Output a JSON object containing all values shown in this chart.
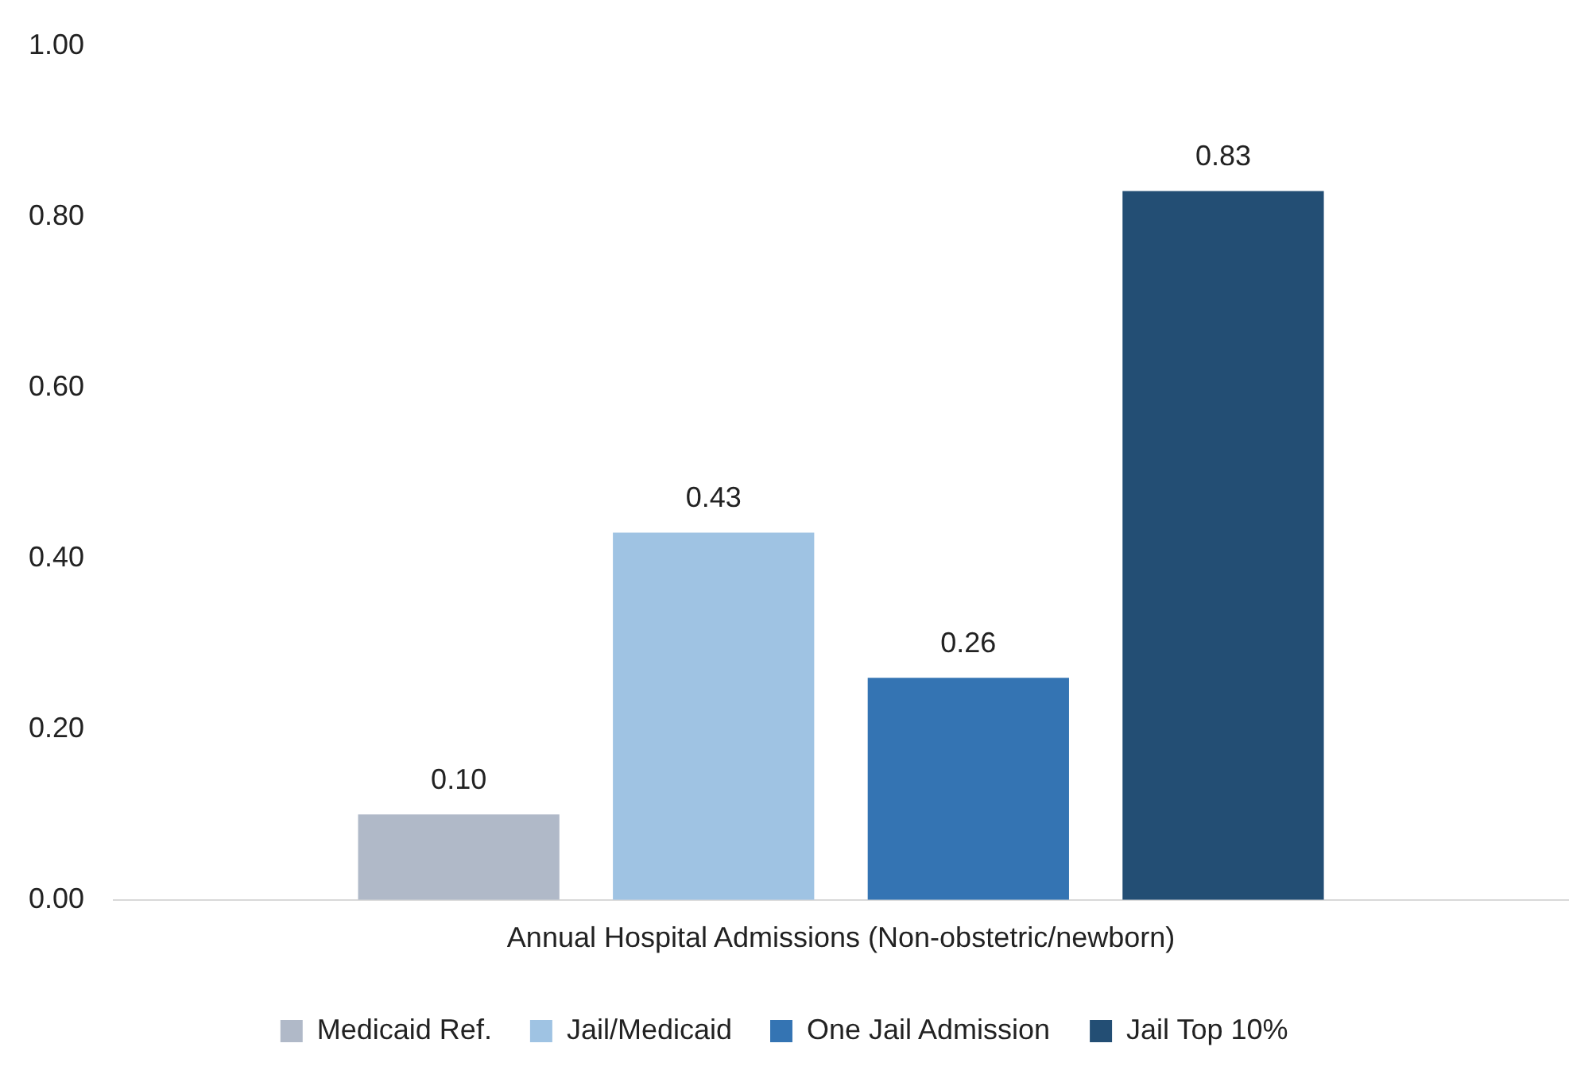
{
  "chart_data": {
    "type": "bar",
    "categories": [
      "Annual Hospital Admissions (Non-obstetric/newborn)"
    ],
    "series": [
      {
        "name": "Medicaid Ref.",
        "color": "#b0b9c8",
        "values": [
          0.1
        ],
        "value_labels": [
          "0.10"
        ]
      },
      {
        "name": "Jail/Medicaid",
        "color": "#9fc3e3",
        "values": [
          0.43
        ],
        "value_labels": [
          "0.43"
        ]
      },
      {
        "name": "One Jail Admission",
        "color": "#3474b3",
        "values": [
          0.26
        ],
        "value_labels": [
          "0.26"
        ]
      },
      {
        "name": "Jail Top 10%",
        "color": "#234e74",
        "values": [
          0.83
        ],
        "value_labels": [
          "0.83"
        ]
      }
    ],
    "ylim": [
      0,
      1
    ],
    "yticks": [
      {
        "value": 0,
        "label": "0.00"
      },
      {
        "value": 0.2,
        "label": "0.20"
      },
      {
        "value": 0.4,
        "label": "0.40"
      },
      {
        "value": 0.6,
        "label": "0.60"
      },
      {
        "value": 0.8,
        "label": "0.80"
      },
      {
        "value": 1,
        "label": "1.00"
      }
    ],
    "grid": false,
    "legend": "bottom"
  }
}
